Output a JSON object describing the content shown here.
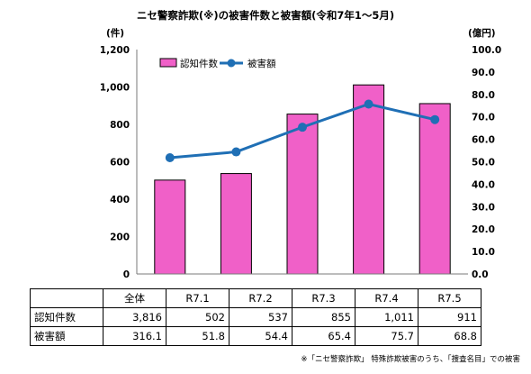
{
  "title": "ニセ警察詐欺(※)の被害件数と被害額(令和7年1〜5月)",
  "chart_data": {
    "type": "bar+line",
    "categories": [
      "R7.1",
      "R7.2",
      "R7.3",
      "R7.4",
      "R7.5"
    ],
    "series": [
      {
        "name": "認知件数",
        "kind": "bar",
        "axis": "left",
        "color": "#f060c8",
        "values": [
          502,
          537,
          855,
          1011,
          911
        ]
      },
      {
        "name": "被害額",
        "kind": "line",
        "axis": "right",
        "color": "#1f6fb5",
        "values": [
          51.8,
          54.4,
          65.4,
          75.7,
          68.8
        ]
      }
    ],
    "left_axis": {
      "label": "(件)",
      "min": 0,
      "max": 1200,
      "ticks": [
        "0",
        "200",
        "400",
        "600",
        "800",
        "1,000",
        "1,200"
      ]
    },
    "right_axis": {
      "label": "(億円)",
      "min": 0,
      "max": 100,
      "ticks": [
        "0.0",
        "10.0",
        "20.0",
        "30.0",
        "40.0",
        "50.0",
        "60.0",
        "70.0",
        "80.0",
        "90.0",
        "100.0"
      ]
    },
    "legend_position": "top-left",
    "grid": false
  },
  "table": {
    "headers": [
      "全体",
      "R7.1",
      "R7.2",
      "R7.3",
      "R7.4",
      "R7.5"
    ],
    "rows": [
      {
        "label": "認知件数",
        "values": [
          "3,816",
          "502",
          "537",
          "855",
          "1,011",
          "911"
        ]
      },
      {
        "label": "被害額",
        "values": [
          "316.1",
          "51.8",
          "54.4",
          "65.4",
          "75.7",
          "68.8"
        ]
      }
    ]
  },
  "note": "※「ニセ警察詐欺」 特殊詐欺被害のうち、「捜査名目」での被害"
}
